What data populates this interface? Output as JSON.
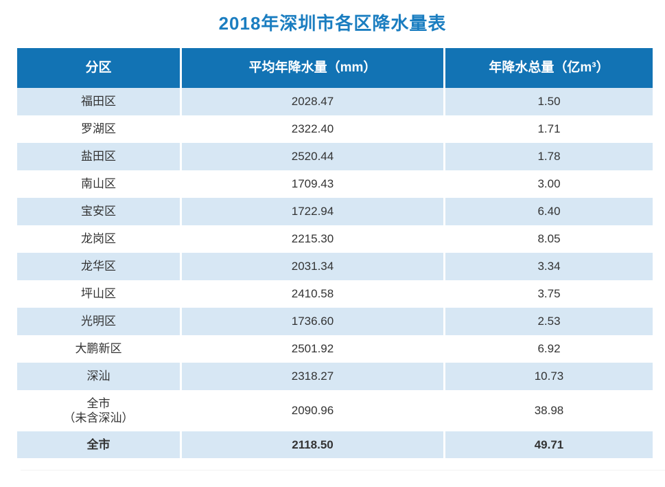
{
  "title": "2018年深圳市各区降水量表",
  "chart_data": {
    "type": "table",
    "title": "2018年深圳市各区降水量表",
    "columns": [
      "分区",
      "平均年降水量（mm）",
      "年降水总量（亿m³）"
    ],
    "rows": [
      [
        "福田区",
        "2028.47",
        "1.50"
      ],
      [
        "罗湖区",
        "2322.40",
        "1.71"
      ],
      [
        "盐田区",
        "2520.44",
        "1.78"
      ],
      [
        "南山区",
        "1709.43",
        "3.00"
      ],
      [
        "宝安区",
        "1722.94",
        "6.40"
      ],
      [
        "龙岗区",
        "2215.30",
        "8.05"
      ],
      [
        "龙华区",
        "2031.34",
        "3.34"
      ],
      [
        "坪山区",
        "2410.58",
        "3.75"
      ],
      [
        "光明区",
        "1736.60",
        "2.53"
      ],
      [
        "大鹏新区",
        "2501.92",
        "6.92"
      ],
      [
        "深汕",
        "2318.27",
        "10.73"
      ],
      [
        "全市\n（未含深汕）",
        "2090.96",
        "38.98"
      ],
      [
        "全市",
        "2118.50",
        "49.71"
      ]
    ]
  },
  "colors": {
    "title_blue": "#1a7dc0",
    "header_bg": "#1273b4",
    "alt_row_bg": "#d7e7f4",
    "text": "#333333"
  }
}
